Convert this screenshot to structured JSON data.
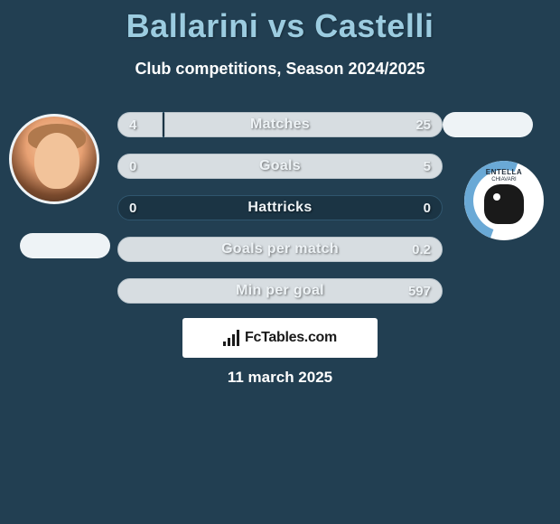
{
  "title": "Ballarini vs Castelli",
  "subtitle": "Club competitions, Season 2024/2025",
  "colors": {
    "background": "#223f52",
    "title": "#9ccce0",
    "bar_bg": "#1b3444",
    "bar_fill": "#d7dde1",
    "text": "#ffffff"
  },
  "left_player": {
    "name": "Ballarini"
  },
  "right_player": {
    "name": "Castelli",
    "club_text": "ENTELLA",
    "club_sub": "CHIAVARI"
  },
  "rows": [
    {
      "label": "Matches",
      "left_val": "4",
      "right_val": "25",
      "left_pct": 14,
      "right_pct": 86
    },
    {
      "label": "Goals",
      "left_val": "0",
      "right_val": "5",
      "left_pct": 0,
      "right_pct": 100
    },
    {
      "label": "Hattricks",
      "left_val": "0",
      "right_val": "0",
      "left_pct": 0,
      "right_pct": 0
    },
    {
      "label": "Goals per match",
      "left_val": "",
      "right_val": "0.2",
      "left_pct": 0,
      "right_pct": 100
    },
    {
      "label": "Min per goal",
      "left_val": "",
      "right_val": "597",
      "left_pct": 0,
      "right_pct": 100
    }
  ],
  "footer": {
    "brand": "FcTables.com",
    "date": "11 march 2025"
  }
}
